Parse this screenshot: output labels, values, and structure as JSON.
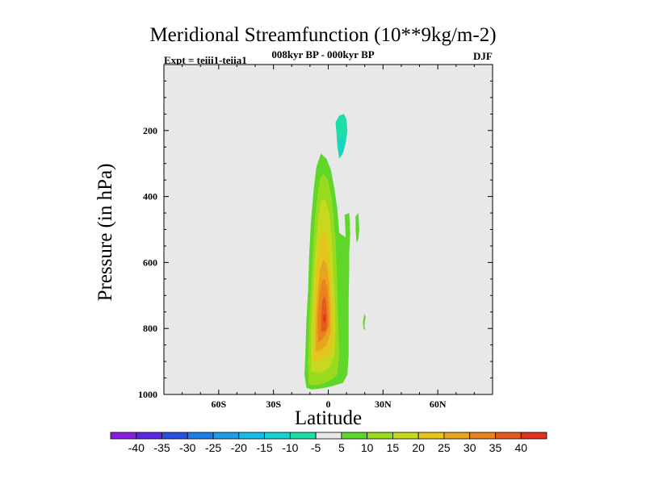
{
  "chart_data": {
    "type": "contour",
    "title": "Meridional Streamfunction (10**9kg/m-2)",
    "subtitle": "008kyr BP - 000kyr BP",
    "experiment_label": "Expt = teiii1-teiia1",
    "season": "DJF",
    "xlabel": "Latitude",
    "ylabel": "Pressure (in hPa)",
    "x_range": [
      -90,
      90
    ],
    "y_range": [
      1000,
      0
    ],
    "x_ticks": [
      {
        "value": -60,
        "label": "60S"
      },
      {
        "value": -30,
        "label": "30S"
      },
      {
        "value": 0,
        "label": "0"
      },
      {
        "value": 30,
        "label": "30N"
      },
      {
        "value": 60,
        "label": "60N"
      }
    ],
    "y_ticks": [
      {
        "value": 200,
        "label": "200"
      },
      {
        "value": 400,
        "label": "400"
      },
      {
        "value": 600,
        "label": "600"
      },
      {
        "value": 800,
        "label": "800"
      },
      {
        "value": 1000,
        "label": "1000"
      }
    ],
    "background_color": "#e8e8e8",
    "colorbar": {
      "boundaries": [
        "-40",
        "-35",
        "-30",
        "-25",
        "-20",
        "-15",
        "-10",
        "-5",
        "5",
        "10",
        "15",
        "20",
        "25",
        "30",
        "35",
        "40"
      ],
      "colors": [
        "#8a1ee0",
        "#5a28e0",
        "#2a50e0",
        "#1e7ee6",
        "#1e9ee8",
        "#18bce8",
        "#18d2d0",
        "#20dca8",
        "#e8e8e8",
        "#5ed62a",
        "#98da1e",
        "#c8d81e",
        "#e6c41e",
        "#e6a51e",
        "#e8831e",
        "#e65a1e",
        "#e0321e"
      ]
    },
    "cells": [
      {
        "level": 5,
        "points": [
          [
            -12,
            980
          ],
          [
            -13,
            940
          ],
          [
            -12.5,
            870
          ],
          [
            -12,
            780
          ],
          [
            -11,
            680
          ],
          [
            -10.5,
            580
          ],
          [
            -9.5,
            480
          ],
          [
            -8,
            380
          ],
          [
            -6.5,
            310
          ],
          [
            -4,
            270
          ],
          [
            -1,
            285
          ],
          [
            1.5,
            320
          ],
          [
            3.5,
            380
          ],
          [
            5,
            440
          ],
          [
            6,
            510
          ],
          [
            11,
            530
          ],
          [
            11.5,
            560
          ],
          [
            11.5,
            620
          ],
          [
            11.2,
            700
          ],
          [
            11.2,
            800
          ],
          [
            11.2,
            880
          ],
          [
            10.5,
            940
          ],
          [
            8,
            965
          ],
          [
            2,
            975
          ],
          [
            -4,
            982
          ],
          [
            -9,
            985
          ]
        ]
      },
      {
        "level": 5,
        "points": [
          [
            9,
            455
          ],
          [
            11.5,
            450
          ],
          [
            12,
            510
          ],
          [
            11.5,
            570
          ],
          [
            10.5,
            580
          ],
          [
            9.5,
            520
          ]
        ]
      },
      {
        "level": 5,
        "points": [
          [
            15,
            460
          ],
          [
            16.5,
            450
          ],
          [
            17,
            500
          ],
          [
            16.5,
            530
          ],
          [
            15.5,
            540
          ],
          [
            15,
            500
          ]
        ]
      },
      {
        "level": 5,
        "points": [
          [
            19.8,
            755
          ],
          [
            20.5,
            765
          ],
          [
            20,
            780
          ],
          [
            19.8,
            795
          ],
          [
            20.5,
            805
          ],
          [
            19.3,
            800
          ],
          [
            19,
            780
          ]
        ]
      },
      {
        "level": 10,
        "points": [
          [
            -10.8,
            970
          ],
          [
            -11,
            900
          ],
          [
            -10.5,
            780
          ],
          [
            -9.5,
            680
          ],
          [
            -8.5,
            580
          ],
          [
            -7.5,
            480
          ],
          [
            -6,
            400
          ],
          [
            -4.5,
            345
          ],
          [
            -2.5,
            330
          ],
          [
            0,
            350
          ],
          [
            2,
            410
          ],
          [
            3,
            470
          ],
          [
            4,
            530
          ],
          [
            4.5,
            600
          ],
          [
            5,
            680
          ],
          [
            5.5,
            780
          ],
          [
            6,
            880
          ],
          [
            5,
            940
          ],
          [
            2,
            955
          ],
          [
            -2,
            965
          ],
          [
            -6,
            972
          ]
        ]
      },
      {
        "level": 15,
        "points": [
          [
            -9.5,
            930
          ],
          [
            -9.5,
            850
          ],
          [
            -9,
            760
          ],
          [
            -8,
            650
          ],
          [
            -7,
            560
          ],
          [
            -5.5,
            470
          ],
          [
            -3.8,
            410
          ],
          [
            -1.5,
            410
          ],
          [
            0.5,
            450
          ],
          [
            1.8,
            520
          ],
          [
            2.5,
            600
          ],
          [
            3.5,
            700
          ],
          [
            4,
            800
          ],
          [
            3.5,
            880
          ],
          [
            0.5,
            920
          ],
          [
            -4,
            935
          ]
        ]
      },
      {
        "level": 20,
        "points": [
          [
            -8,
            900
          ],
          [
            -8,
            820
          ],
          [
            -7.5,
            730
          ],
          [
            -6.5,
            630
          ],
          [
            -5,
            545
          ],
          [
            -3,
            505
          ],
          [
            -0.8,
            520
          ],
          [
            0.5,
            580
          ],
          [
            1.5,
            650
          ],
          [
            2.5,
            750
          ],
          [
            2.5,
            840
          ],
          [
            0,
            880
          ],
          [
            -4,
            895
          ]
        ]
      },
      {
        "level": 25,
        "points": [
          [
            -6.8,
            870
          ],
          [
            -6.8,
            790
          ],
          [
            -6,
            700
          ],
          [
            -4.5,
            620
          ],
          [
            -2.5,
            590
          ],
          [
            -0.8,
            610
          ],
          [
            0.5,
            660
          ],
          [
            1.3,
            740
          ],
          [
            1.3,
            810
          ],
          [
            -0.8,
            850
          ],
          [
            -4,
            865
          ]
        ]
      },
      {
        "level": 30,
        "points": [
          [
            -5.5,
            840
          ],
          [
            -5.8,
            770
          ],
          [
            -5,
            700
          ],
          [
            -3.5,
            655
          ],
          [
            -1.8,
            650
          ],
          [
            -0.5,
            680
          ],
          [
            0.3,
            740
          ],
          [
            0.5,
            790
          ],
          [
            -1,
            815
          ],
          [
            -3.5,
            835
          ]
        ]
      },
      {
        "level": 35,
        "points": [
          [
            -3.8,
            810
          ],
          [
            -4,
            760
          ],
          [
            -3.2,
            715
          ],
          [
            -2,
            700
          ],
          [
            -1.2,
            720
          ],
          [
            -0.6,
            760
          ],
          [
            -0.6,
            795
          ],
          [
            -1.8,
            810
          ]
        ]
      },
      {
        "level": 40,
        "points": [
          [
            -2.3,
            786
          ],
          [
            -2.8,
            770
          ],
          [
            -2.2,
            755
          ],
          [
            -1.5,
            760
          ],
          [
            -1.5,
            776
          ]
        ]
      },
      {
        "level": -5,
        "points": [
          [
            -1,
            175
          ],
          [
            0.5,
            185
          ],
          [
            2,
            170
          ],
          [
            4,
            150
          ],
          [
            7,
            130
          ],
          [
            10,
            135
          ],
          [
            12,
            150
          ],
          [
            12.5,
            180
          ],
          [
            12,
            220
          ],
          [
            11,
            260
          ],
          [
            9.5,
            290
          ],
          [
            7,
            310
          ],
          [
            5,
            335
          ],
          [
            3,
            300
          ],
          [
            2,
            260
          ],
          [
            1,
            220
          ],
          [
            0,
            200
          ],
          [
            -1.5,
            190
          ]
        ]
      },
      {
        "level": -10,
        "points": [
          [
            4,
            175
          ],
          [
            6,
            155
          ],
          [
            8.5,
            150
          ],
          [
            10,
            165
          ],
          [
            10.5,
            200
          ],
          [
            9.5,
            240
          ],
          [
            8,
            270
          ],
          [
            6,
            285
          ],
          [
            5,
            250
          ],
          [
            4.5,
            210
          ]
        ]
      },
      {
        "level": -15,
        "points": [
          [
            6,
            230
          ],
          [
            7.5,
            215
          ],
          [
            8.5,
            235
          ],
          [
            8,
            265
          ],
          [
            6.5,
            275
          ],
          [
            6,
            255
          ]
        ]
      }
    ]
  }
}
